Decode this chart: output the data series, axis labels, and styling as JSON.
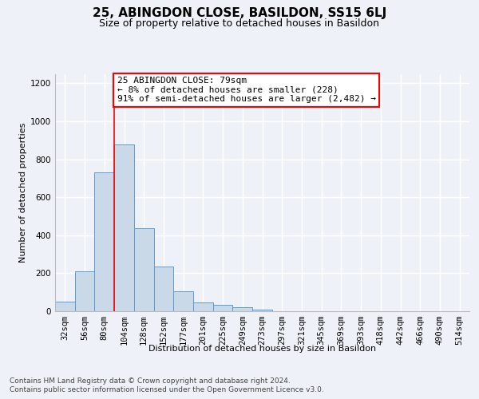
{
  "title": "25, ABINGDON CLOSE, BASILDON, SS15 6LJ",
  "subtitle": "Size of property relative to detached houses in Basildon",
  "xlabel": "Distribution of detached houses by size in Basildon",
  "ylabel": "Number of detached properties",
  "categories": [
    "32sqm",
    "56sqm",
    "80sqm",
    "104sqm",
    "128sqm",
    "152sqm",
    "177sqm",
    "201sqm",
    "225sqm",
    "249sqm",
    "273sqm",
    "297sqm",
    "321sqm",
    "345sqm",
    "369sqm",
    "393sqm",
    "418sqm",
    "442sqm",
    "466sqm",
    "490sqm",
    "514sqm"
  ],
  "values": [
    50,
    210,
    730,
    880,
    435,
    235,
    105,
    48,
    35,
    22,
    10,
    0,
    0,
    0,
    0,
    0,
    0,
    0,
    0,
    0,
    0
  ],
  "bar_color": "#c9d9e8",
  "bar_edge_color": "#5b9bd5",
  "annotation_box_text": "25 ABINGDON CLOSE: 79sqm\n← 8% of detached houses are smaller (228)\n91% of semi-detached houses are larger (2,482) →",
  "annotation_box_color": "white",
  "annotation_box_edge_color": "red",
  "vline_color": "red",
  "vline_x": 2.5,
  "ylim": [
    0,
    1250
  ],
  "yticks": [
    0,
    200,
    400,
    600,
    800,
    1000,
    1200
  ],
  "footer_line1": "Contains HM Land Registry data © Crown copyright and database right 2024.",
  "footer_line2": "Contains public sector information licensed under the Open Government Licence v3.0.",
  "background_color": "#eef2f8",
  "grid_color": "white",
  "title_fontsize": 11,
  "subtitle_fontsize": 9,
  "axis_label_fontsize": 8,
  "tick_fontsize": 7.5,
  "footer_fontsize": 6.5,
  "annotation_fontsize": 8
}
